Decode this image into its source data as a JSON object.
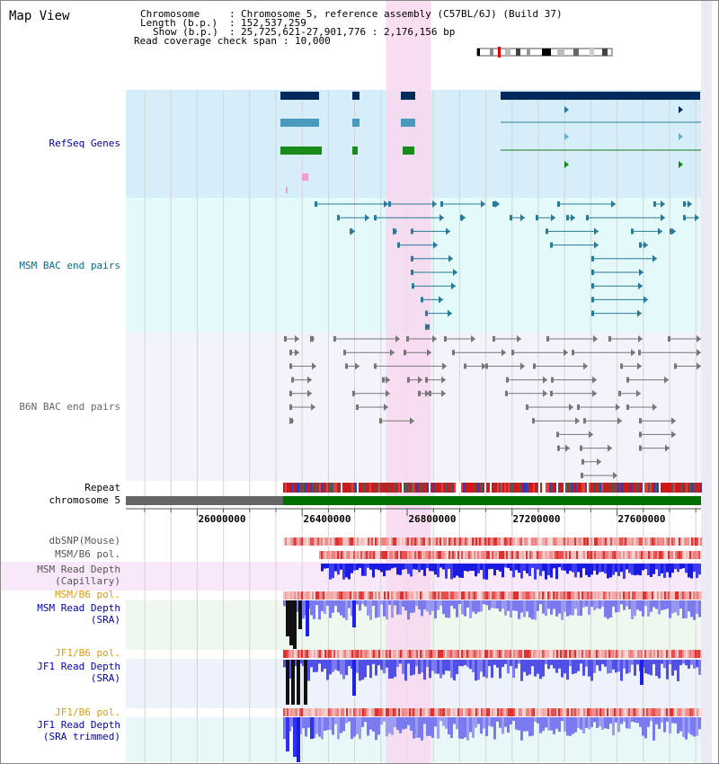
{
  "map_view": {
    "title": "Map View"
  },
  "info": {
    "chromosome_key": "Chromosome",
    "chromosome_value": "Chromosome 5, reference assembly (C57BL/6J) (Build 37)",
    "length_key": "Length (b.p.)",
    "length_value": "152,537,259",
    "show_key": "Show (b.p.)",
    "show_value": "25,725,621-27,901,776 : 2,176,156 bp",
    "coverage_key": "Read coverage check span",
    "coverage_value": "10,000"
  },
  "tracks": {
    "refseq": "RefSeq Genes",
    "msm_bac": "MSM BAC end pairs",
    "b6n_bac": "B6N BAC end pairs",
    "repeat": "Repeat",
    "chromosome": "chromosome 5",
    "dbsnp": "dbSNP(Mouse)",
    "msm_b6_pol_1": "MSM/B6 pol.",
    "msm_read_depth_cap_1": "MSM Read Depth",
    "msm_read_depth_cap_2": "(Capillary)",
    "msm_b6_pol_2": "MSM/B6 pol.",
    "msm_read_depth_sra_1": "MSM Read Depth",
    "msm_read_depth_sra_2": "(SRA)",
    "jf1_b6_pol_1": "JF1/B6 pol.",
    "jf1_read_depth_sra_1": "JF1 Read Depth",
    "jf1_read_depth_sra_2": "(SRA)",
    "jf1_b6_pol_2": "JF1/B6 pol.",
    "jf1_read_depth_trim_1": "JF1 Read Depth",
    "jf1_read_depth_trim_2": "(SRA trimmed)"
  },
  "axis": {
    "ticks": [
      "26000000",
      "26400000",
      "26800000",
      "27200000",
      "27600000"
    ],
    "start_bp": 25725621,
    "end_bp": 27901776,
    "highlight_bp": [
      26710000,
      26880000
    ]
  },
  "colors": {
    "refseq_bg": "#d6eef9",
    "msm_bg": "#e4f9f9",
    "b6n_bg": "#f3f3fb",
    "highlight": "#f8d8f0",
    "refseq_dark": "#002a5c",
    "msm_pair": "#2a7a99",
    "b6n_pair": "#777777",
    "chrom_gray": "#666666",
    "chrom_green": "#007000",
    "depth_blue": "#2a2aee",
    "depth_light": "#8888ee"
  }
}
